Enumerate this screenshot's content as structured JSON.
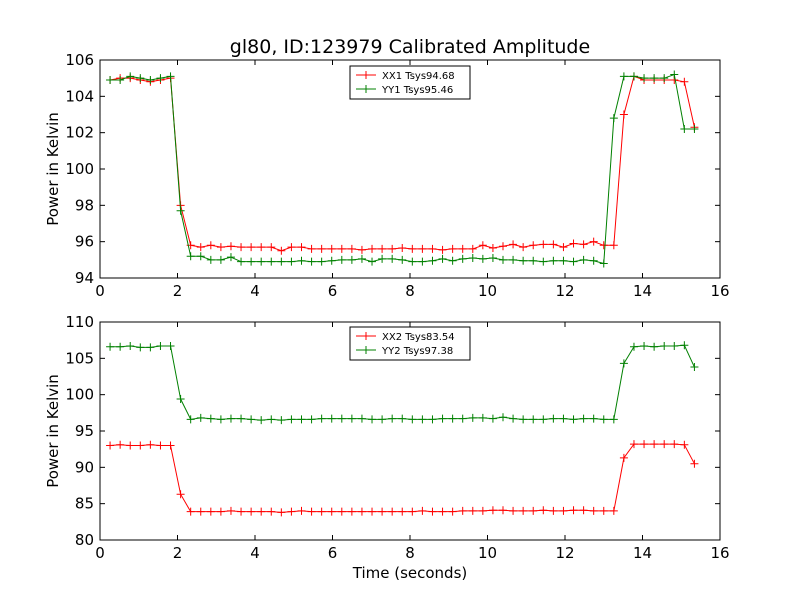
{
  "title": "gl80, ID:123979 Calibrated Amplitude",
  "xlabel": "Time (seconds)",
  "chart_data": [
    {
      "type": "line",
      "ylabel": "Power in Kelvin",
      "xlim": [
        0,
        16
      ],
      "ylim": [
        94,
        106
      ],
      "xticks": [
        0,
        2,
        4,
        6,
        8,
        10,
        12,
        14,
        16
      ],
      "yticks": [
        94,
        96,
        98,
        100,
        102,
        104,
        106
      ],
      "grid": false,
      "legend": "top-center",
      "x": [
        0.26,
        0.52,
        0.78,
        1.04,
        1.3,
        1.56,
        1.82,
        2.08,
        2.34,
        2.6,
        2.86,
        3.12,
        3.38,
        3.64,
        3.9,
        4.16,
        4.42,
        4.68,
        4.94,
        5.2,
        5.46,
        5.72,
        5.98,
        6.24,
        6.5,
        6.76,
        7.02,
        7.28,
        7.54,
        7.8,
        8.06,
        8.32,
        8.58,
        8.84,
        9.1,
        9.36,
        9.62,
        9.88,
        10.14,
        10.4,
        10.66,
        10.92,
        11.18,
        11.44,
        11.7,
        11.96,
        12.22,
        12.48,
        12.74,
        13.0,
        13.26,
        13.52,
        13.78,
        14.04,
        14.3,
        14.56,
        14.82,
        15.08,
        15.34
      ],
      "series": [
        {
          "name": "XX1 Tsys94.68",
          "color": "#ff0000",
          "values": [
            104.9,
            105.0,
            105.0,
            104.9,
            104.8,
            104.9,
            105.0,
            98.0,
            95.8,
            95.7,
            95.8,
            95.7,
            95.75,
            95.7,
            95.7,
            95.7,
            95.7,
            95.5,
            95.7,
            95.7,
            95.6,
            95.6,
            95.6,
            95.6,
            95.6,
            95.55,
            95.6,
            95.6,
            95.6,
            95.65,
            95.6,
            95.6,
            95.6,
            95.55,
            95.6,
            95.6,
            95.6,
            95.8,
            95.65,
            95.75,
            95.85,
            95.7,
            95.8,
            95.85,
            95.85,
            95.7,
            95.9,
            95.85,
            96.0,
            95.8,
            95.8,
            103.0,
            105.1,
            104.9,
            104.9,
            104.9,
            104.9,
            104.8,
            102.3
          ]
        },
        {
          "name": "YY1 Tsys95.46",
          "color": "#008000",
          "values": [
            104.9,
            104.9,
            105.1,
            105.0,
            104.9,
            105.0,
            105.1,
            97.7,
            95.2,
            95.2,
            95.0,
            95.0,
            95.15,
            94.9,
            94.9,
            94.9,
            94.9,
            94.9,
            94.9,
            94.95,
            94.9,
            94.9,
            94.95,
            95.0,
            95.0,
            95.05,
            94.9,
            95.05,
            95.05,
            95.0,
            94.9,
            94.9,
            94.95,
            95.05,
            94.95,
            95.05,
            95.1,
            95.05,
            95.1,
            95.0,
            95.0,
            94.95,
            94.95,
            94.9,
            94.95,
            94.95,
            94.9,
            95.0,
            94.95,
            94.8,
            102.8,
            105.1,
            105.1,
            105.0,
            105.0,
            105.0,
            105.2,
            102.2,
            102.2
          ]
        }
      ]
    },
    {
      "type": "line",
      "ylabel": "Power in Kelvin",
      "xlim": [
        0,
        16
      ],
      "ylim": [
        80,
        110
      ],
      "xticks": [
        0,
        2,
        4,
        6,
        8,
        10,
        12,
        14,
        16
      ],
      "yticks": [
        80,
        85,
        90,
        95,
        100,
        105,
        110
      ],
      "grid": false,
      "legend": "top-center",
      "x": [
        0.26,
        0.52,
        0.78,
        1.04,
        1.3,
        1.56,
        1.82,
        2.08,
        2.34,
        2.6,
        2.86,
        3.12,
        3.38,
        3.64,
        3.9,
        4.16,
        4.42,
        4.68,
        4.94,
        5.2,
        5.46,
        5.72,
        5.98,
        6.24,
        6.5,
        6.76,
        7.02,
        7.28,
        7.54,
        7.8,
        8.06,
        8.32,
        8.58,
        8.84,
        9.1,
        9.36,
        9.62,
        9.88,
        10.14,
        10.4,
        10.66,
        10.92,
        11.18,
        11.44,
        11.7,
        11.96,
        12.22,
        12.48,
        12.74,
        13.0,
        13.26,
        13.52,
        13.78,
        14.04,
        14.3,
        14.56,
        14.82,
        15.08,
        15.34
      ],
      "series": [
        {
          "name": "XX2 Tsys83.54",
          "color": "#ff0000",
          "values": [
            93.0,
            93.1,
            93.0,
            93.0,
            93.1,
            93.0,
            93.0,
            86.3,
            83.9,
            83.9,
            83.9,
            83.9,
            84.0,
            83.9,
            83.9,
            83.9,
            83.9,
            83.8,
            83.9,
            84.0,
            83.9,
            83.9,
            83.9,
            83.9,
            83.9,
            83.9,
            83.9,
            83.9,
            83.9,
            83.9,
            83.9,
            84.0,
            83.9,
            83.9,
            83.9,
            84.0,
            84.0,
            84.0,
            84.1,
            84.1,
            84.0,
            84.0,
            84.0,
            84.1,
            84.0,
            84.0,
            84.1,
            84.1,
            84.0,
            84.0,
            84.0,
            91.3,
            93.2,
            93.2,
            93.2,
            93.2,
            93.2,
            93.1,
            90.5
          ]
        },
        {
          "name": "YY2 Tsys97.38",
          "color": "#008000",
          "values": [
            106.6,
            106.6,
            106.7,
            106.5,
            106.5,
            106.7,
            106.7,
            99.4,
            96.6,
            96.8,
            96.7,
            96.6,
            96.7,
            96.7,
            96.6,
            96.5,
            96.6,
            96.5,
            96.6,
            96.6,
            96.6,
            96.7,
            96.7,
            96.7,
            96.7,
            96.7,
            96.6,
            96.6,
            96.7,
            96.7,
            96.6,
            96.6,
            96.6,
            96.7,
            96.7,
            96.7,
            96.8,
            96.8,
            96.7,
            96.9,
            96.7,
            96.6,
            96.6,
            96.6,
            96.7,
            96.7,
            96.6,
            96.7,
            96.7,
            96.6,
            96.6,
            104.3,
            106.6,
            106.7,
            106.6,
            106.7,
            106.7,
            106.8,
            103.8
          ]
        }
      ]
    }
  ]
}
